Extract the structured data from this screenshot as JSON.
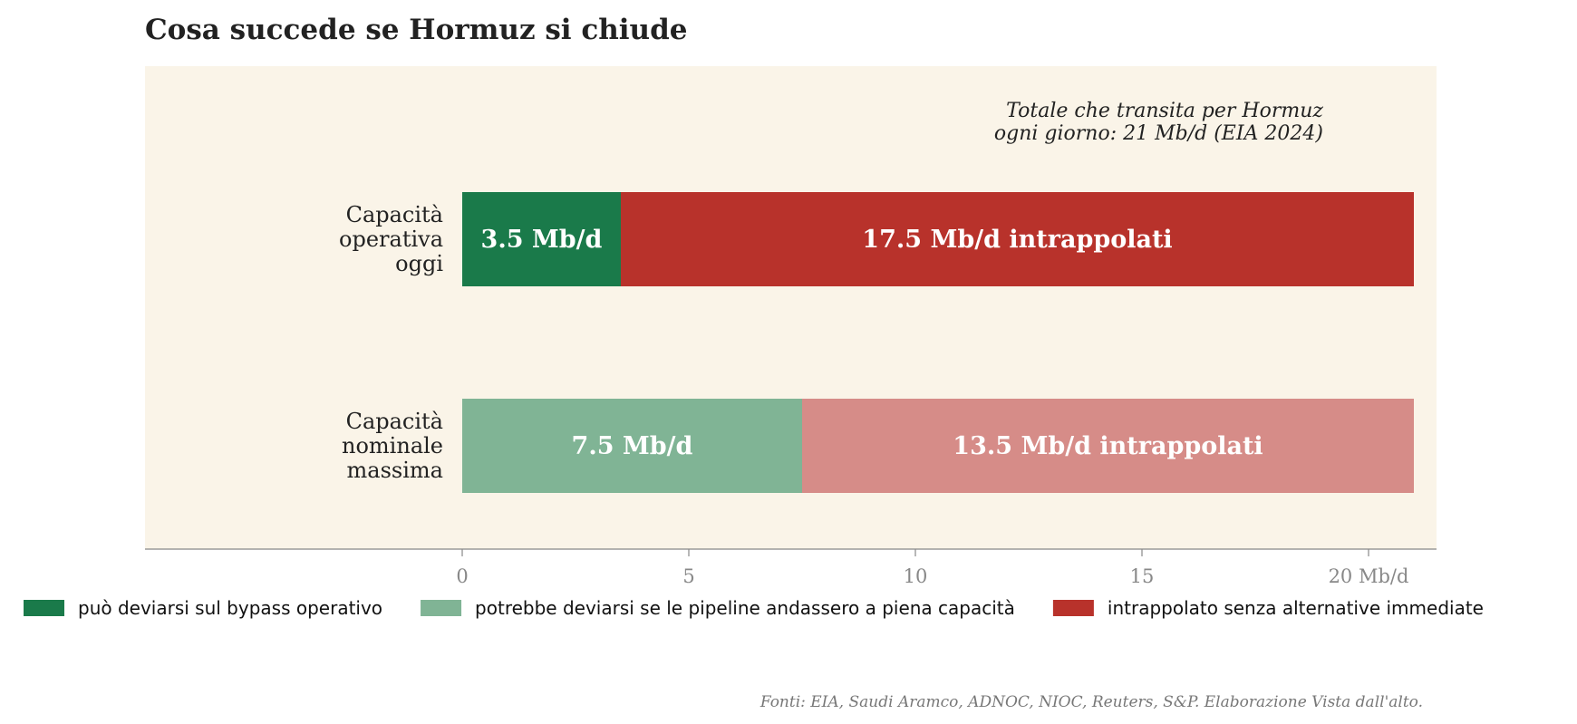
{
  "chart_data": {
    "type": "bar",
    "orientation": "horizontal",
    "stacked": true,
    "title": "Cosa succede se Hormuz si chiude",
    "annotation_lines": [
      "Totale che transita per Hormuz",
      "ogni giorno: 21 Mb/d (EIA 2024)"
    ],
    "total_transit_mbd": 21,
    "categories": [
      {
        "label_lines": [
          "Capacità",
          "operativa",
          "oggi"
        ]
      },
      {
        "label_lines": [
          "Capacità",
          "nominale",
          "massima"
        ]
      }
    ],
    "rows": [
      {
        "segments": [
          {
            "value": 3.5,
            "label": "3.5 Mb/d",
            "color": "#1a7a4a"
          },
          {
            "value": 17.5,
            "label": "17.5 Mb/d intrappolati",
            "color": "#b8322b"
          }
        ]
      },
      {
        "segments": [
          {
            "value": 7.5,
            "label": "7.5 Mb/d",
            "color": "#80b495"
          },
          {
            "value": 13.5,
            "label": "13.5 Mb/d intrappolati",
            "color": "#d68c88"
          }
        ]
      }
    ],
    "x_ticks": [
      {
        "value": 0,
        "label": "0"
      },
      {
        "value": 5,
        "label": "5"
      },
      {
        "value": 10,
        "label": "10"
      },
      {
        "value": 15,
        "label": "15"
      },
      {
        "value": 20,
        "label": "20 Mb/d"
      }
    ],
    "xlim": [
      0,
      21
    ],
    "legend_position": "bottom",
    "legend": [
      {
        "label": "può deviarsi sul bypass operativo",
        "color": "#1a7a4a"
      },
      {
        "label": "potrebbe deviarsi se le pipeline andassero a piena capacità",
        "color": "#80b495"
      },
      {
        "label": "intrappolato senza alternative immediate",
        "color": "#b8322b"
      }
    ],
    "source": "Fonti: EIA, Saudi Aramco, ADNOC, NIOC, Reuters, S&P. Elaborazione Vista dall'alto.",
    "background_color": "#faf4e8",
    "text_color": "#222222",
    "muted_color": "#777777"
  }
}
